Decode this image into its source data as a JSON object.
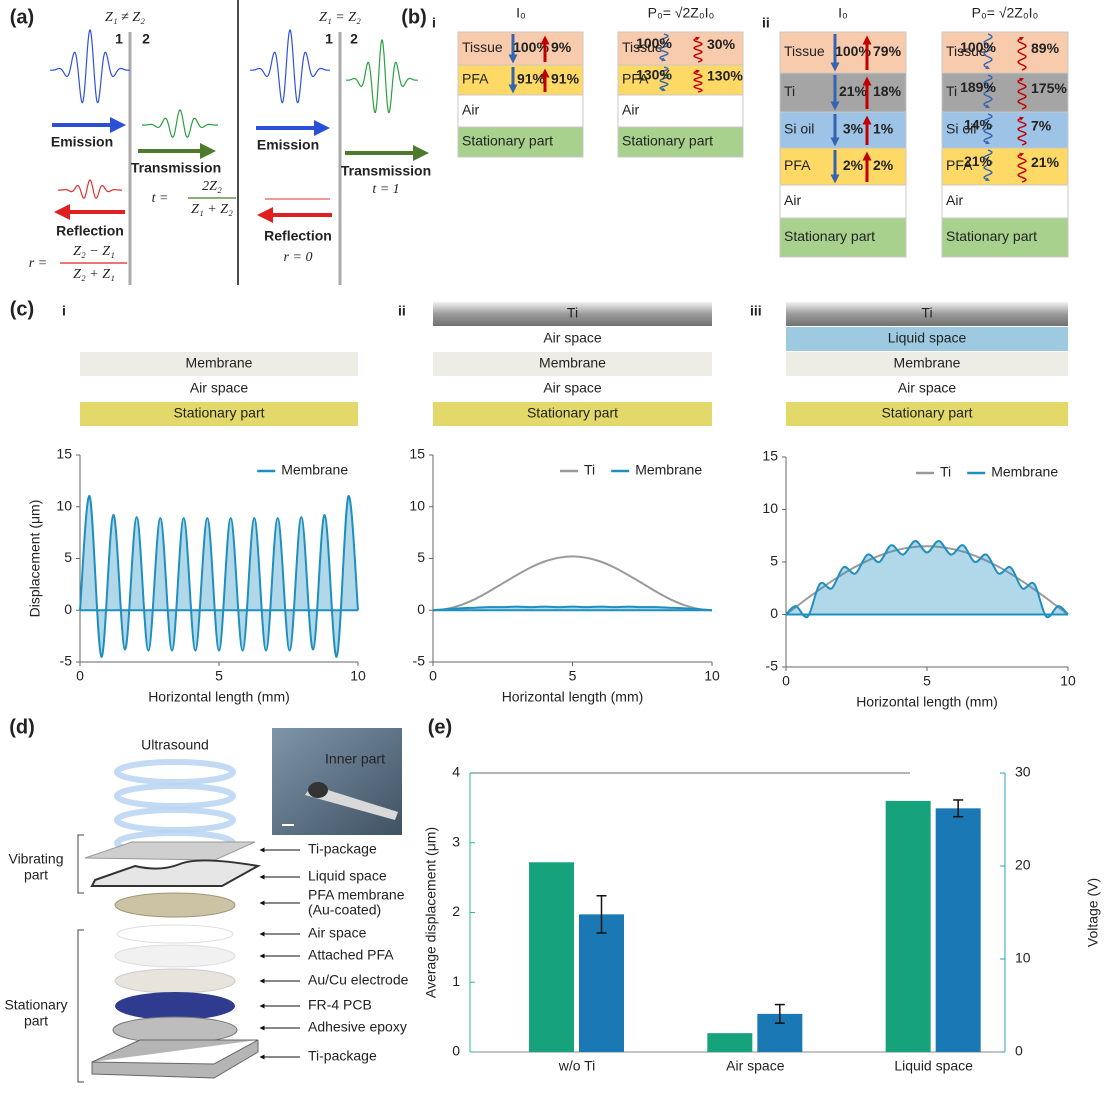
{
  "panel_a": {
    "label": "(a)",
    "mismatch": {
      "condition": "Z₁ ≠ Z₂",
      "medium_1": "1",
      "medium_2": "2",
      "emission": "Emission",
      "transmission": "Transmission",
      "t_lhs": "t =",
      "t_num": "2Z₂",
      "t_den": "Z₁ + Z₂",
      "reflection": "Reflection",
      "r_lhs": "r =",
      "r_num": "Z₂ − Z₁",
      "r_den": "Z₂ + Z₁"
    },
    "matched": {
      "condition": "Z₁ = Z₂",
      "medium_1": "1",
      "medium_2": "2",
      "emission": "Emission",
      "transmission": "Transmission",
      "t": "t = 1",
      "reflection": "Reflection",
      "r": "r = 0"
    }
  },
  "panel_b": {
    "label": "(b)",
    "groups": [
      {
        "label": "i",
        "stacks": [
          {
            "header": "I₀",
            "layers": [
              {
                "name": "Tissue",
                "down": "100%",
                "up": "9%"
              },
              {
                "name": "PFA",
                "down": "91%",
                "up": "91%"
              },
              {
                "name": "Air"
              },
              {
                "name": "Stationary part"
              }
            ]
          },
          {
            "header": "P₀= √2Z₀I₀",
            "layers": [
              {
                "name": "Tissue",
                "down": "100%",
                "up": "30%"
              },
              {
                "name": "PFA",
                "down": "130%",
                "up": "130%"
              },
              {
                "name": "Air"
              },
              {
                "name": "Stationary part"
              }
            ]
          }
        ]
      },
      {
        "label": "ii",
        "stacks": [
          {
            "header": "I₀",
            "layers": [
              {
                "name": "Tissue",
                "down": "100%",
                "up": "79%"
              },
              {
                "name": "Ti",
                "down": "21%",
                "up": "18%"
              },
              {
                "name": "Si oil",
                "down": "3%",
                "up": "1%"
              },
              {
                "name": "PFA",
                "down": "2%",
                "up": "2%"
              },
              {
                "name": "Air"
              },
              {
                "name": "Stationary part"
              }
            ]
          },
          {
            "header": "P₀= √2Z₀I₀",
            "layers": [
              {
                "name": "Tissue",
                "down": "100%",
                "up": "89%"
              },
              {
                "name": "Ti",
                "down": "189%",
                "up": "175%"
              },
              {
                "name": "Si oil",
                "down": "14%",
                "up": "7%"
              },
              {
                "name": "PFA",
                "down": "21%",
                "up": "21%"
              },
              {
                "name": "Air"
              },
              {
                "name": "Stationary part"
              }
            ]
          }
        ]
      }
    ]
  },
  "panel_c": {
    "label": "(c)",
    "subpanels": [
      {
        "label": "i",
        "layers": [
          "Membrane",
          "Air space",
          "Stationary part"
        ]
      },
      {
        "label": "ii",
        "layers": [
          "Ti",
          "Air space",
          "Membrane",
          "Air space",
          "Stationary part"
        ]
      },
      {
        "label": "iii",
        "layers": [
          "Ti",
          "Liquid space",
          "Membrane",
          "Air space",
          "Stationary part"
        ]
      }
    ]
  },
  "panel_d": {
    "label": "(d)",
    "source": "Ultrasound",
    "inset": "Inner part",
    "parts": [
      [
        "Ti-package"
      ],
      [
        "Liquid space"
      ],
      [
        "PFA membrane",
        "(Au-coated)"
      ],
      [
        "Air space"
      ],
      [
        "Attached PFA"
      ],
      [
        "Au/Cu electrode"
      ],
      [
        "FR-4 PCB"
      ],
      [
        "Adhesive epoxy"
      ],
      [
        "Ti-package"
      ]
    ],
    "groups": [
      [
        "Vibrating",
        "part"
      ],
      [
        "Stationary",
        "part"
      ]
    ]
  },
  "panel_e": {
    "label": "(e)"
  },
  "chart_data": [
    {
      "type": "line",
      "xlabel": "Horizontal length (mm)",
      "ylabel": "Displacement (μm)",
      "x": [
        0,
        0.35,
        0.77,
        1.2,
        1.62,
        2.04,
        2.46,
        2.89,
        3.31,
        3.73,
        4.15,
        4.58,
        5.0,
        5.42,
        5.85,
        6.27,
        6.69,
        7.11,
        7.54,
        7.96,
        8.38,
        8.8,
        9.23,
        9.65,
        10
      ],
      "series": [
        {
          "name": "Membrane",
          "color": "#1f8fbf",
          "fill": true,
          "values": [
            0,
            11,
            -4.5,
            9.2,
            -3.8,
            9,
            -3.9,
            8.9,
            -3.9,
            8.9,
            -3.9,
            8.9,
            -3.9,
            8.9,
            -3.9,
            8.9,
            -3.9,
            8.9,
            -3.9,
            9,
            -3.8,
            9.2,
            -4.5,
            11,
            0
          ]
        }
      ],
      "xlim": [
        0,
        10
      ],
      "ylim": [
        -5,
        15
      ],
      "xticks": [
        0,
        5,
        10
      ],
      "yticks": [
        -5,
        0,
        5,
        10,
        15
      ],
      "legend": "upper right"
    },
    {
      "type": "line",
      "xlabel": "Horizontal length (mm)",
      "x": [
        0,
        0.5,
        1,
        1.5,
        2,
        2.5,
        3,
        3.5,
        4,
        4.5,
        5,
        5.5,
        6,
        6.5,
        7,
        7.5,
        8,
        8.5,
        9,
        9.5,
        10
      ],
      "series": [
        {
          "name": "Ti",
          "color": "#9a9a9a",
          "fill": false,
          "values": [
            0,
            0.13,
            0.5,
            1.07,
            1.8,
            2.6,
            3.4,
            4.13,
            4.71,
            5.07,
            5.2,
            5.07,
            4.71,
            4.13,
            3.4,
            2.6,
            1.8,
            1.07,
            0.5,
            0.13,
            0
          ]
        },
        {
          "name": "Membrane",
          "color": "#1f8fbf",
          "fill": true,
          "values": [
            0,
            0.1,
            0.2,
            0.25,
            0.3,
            0.3,
            0.35,
            0.3,
            0.35,
            0.3,
            0.35,
            0.3,
            0.35,
            0.3,
            0.35,
            0.3,
            0.3,
            0.25,
            0.2,
            0.1,
            0
          ]
        }
      ],
      "xlim": [
        0,
        10
      ],
      "ylim": [
        -5,
        15
      ],
      "xticks": [
        0,
        5,
        10
      ],
      "yticks": [
        -5,
        0,
        5,
        10,
        15
      ],
      "legend": "upper right"
    },
    {
      "type": "line",
      "xlabel": "Horizontal length (mm)",
      "x": [
        0,
        0.35,
        0.77,
        1.2,
        1.62,
        2.04,
        2.46,
        2.89,
        3.31,
        3.73,
        4.15,
        4.58,
        5.0,
        5.42,
        5.85,
        6.27,
        6.69,
        7.11,
        7.54,
        7.96,
        8.38,
        8.8,
        9.23,
        9.65,
        10
      ],
      "series": [
        {
          "name": "Ti",
          "color": "#9a9a9a",
          "fill": false,
          "values": [
            0,
            0.71,
            1.56,
            2.39,
            3.17,
            3.89,
            4.54,
            5.12,
            5.6,
            5.99,
            6.27,
            6.44,
            6.5,
            6.44,
            6.27,
            5.99,
            5.6,
            5.12,
            4.54,
            3.89,
            3.17,
            2.39,
            1.56,
            0.71,
            0
          ]
        },
        {
          "name": "Membrane",
          "color": "#1f8fbf",
          "fill": true,
          "values": [
            0,
            0.8,
            -0.2,
            2.9,
            2.5,
            4.5,
            3.9,
            5.7,
            5.0,
            6.6,
            5.7,
            7.0,
            5.9,
            7.0,
            5.7,
            6.6,
            5.0,
            5.7,
            3.9,
            4.5,
            2.5,
            2.9,
            -0.2,
            0.8,
            0
          ]
        }
      ],
      "xlim": [
        0,
        10
      ],
      "ylim": [
        -5,
        15
      ],
      "xticks": [
        0,
        5,
        10
      ],
      "yticks": [
        -5,
        0,
        5,
        10,
        15
      ],
      "legend": "upper right"
    },
    {
      "type": "bar",
      "categories": [
        "w/o Ti",
        "Air space",
        "Liquid space"
      ],
      "series": [
        {
          "color": "#16a37b",
          "values": [
            2.72,
            0.27,
            3.6
          ]
        },
        {
          "color": "#1a78b4",
          "values": [
            14.8,
            4.1,
            26.2
          ],
          "errors": [
            2.0,
            1.0,
            0.9
          ],
          "axis": "y2"
        }
      ],
      "ylabel": "Average displacement (μm)",
      "y2label": "Voltage (V)",
      "ylabel_color": "#2db88a",
      "y2label_color": "#2ea3bd",
      "ylim": [
        0,
        4
      ],
      "yticks": [
        0,
        1,
        2,
        3,
        4
      ],
      "y2lim": [
        0,
        30
      ],
      "y2ticks": [
        0,
        10,
        20,
        30
      ]
    }
  ]
}
